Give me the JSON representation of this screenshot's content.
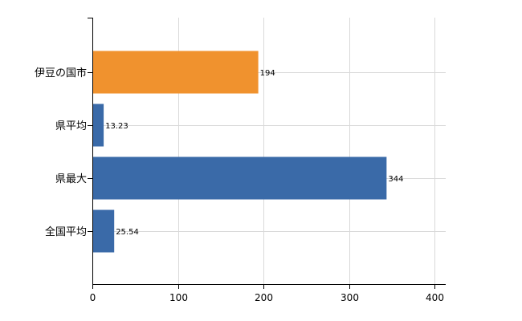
{
  "chart_data": {
    "type": "bar",
    "orientation": "horizontal",
    "categories": [
      "伊豆の国市",
      "県平均",
      "県最大",
      "全国平均"
    ],
    "values": [
      194,
      13.23,
      344,
      25.54
    ],
    "value_labels": [
      "194",
      "13.23",
      "344",
      "25.54"
    ],
    "bar_colors": [
      "#f0922e",
      "#3a6aa8",
      "#3a6aa8",
      "#3a6aa8"
    ],
    "xlim": [
      0,
      400
    ],
    "x_ticks": [
      0,
      100,
      200,
      300,
      400
    ],
    "x_tick_labels": [
      "0",
      "100",
      "200",
      "300",
      "400"
    ],
    "grid": true,
    "title": "",
    "xlabel": "",
    "ylabel": ""
  }
}
